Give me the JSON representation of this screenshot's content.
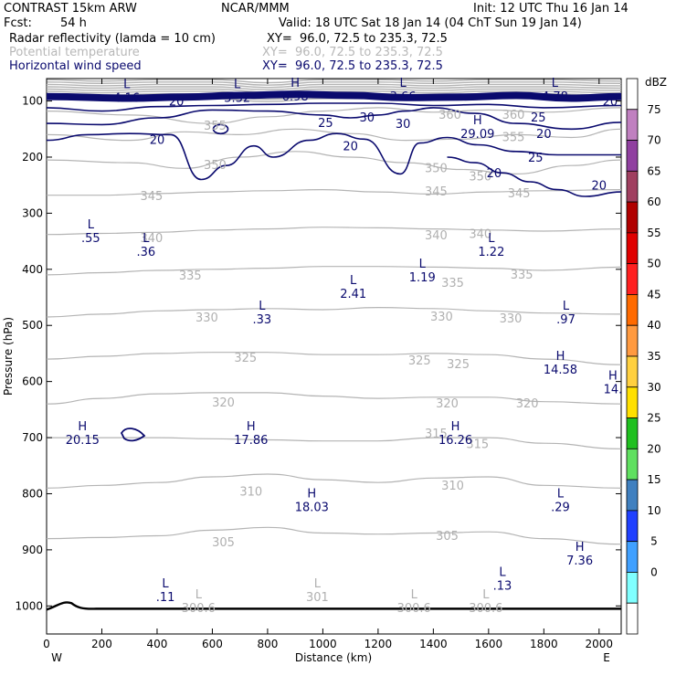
{
  "header": {
    "model": "CONTRAST 15km ARW",
    "org": "NCAR/MMM",
    "init": "Init: 12 UTC Thu 16 Jan 14",
    "fcst_label": "Fcst:",
    "fcst_value": "54 h",
    "valid": "Valid: 18 UTC Sat 18 Jan 14 (04 ChT Sun 19 Jan 14)",
    "fields": [
      {
        "name": "Radar reflectivity (lamda = 10 cm)",
        "xy": "XY=  96.0, 72.5 to 235.3, 72.5",
        "color": "#000000"
      },
      {
        "name": "Potential temperature",
        "xy": "XY=  96.0, 72.5 to 235.3, 72.5",
        "color": "#b8b8b8"
      },
      {
        "name": "Horizontal wind speed",
        "xy": "XY=  96.0, 72.5 to 235.3, 72.5",
        "color": "#0a0a6e"
      }
    ]
  },
  "chart_data": {
    "type": "contour",
    "xlabel": "Distance (km)",
    "ylabel": "Pressure (hPa)",
    "xlim": [
      0,
      2080
    ],
    "ylim": [
      1050,
      60
    ],
    "x_ticks": [
      0,
      200,
      400,
      600,
      800,
      1000,
      1200,
      1400,
      1600,
      1800,
      2000
    ],
    "y_ticks": [
      100,
      200,
      300,
      400,
      500,
      600,
      700,
      800,
      900,
      1000
    ],
    "x_end_labels": {
      "left": "W",
      "right": "E"
    },
    "colorbar": {
      "unit": "dBZ",
      "levels": [
        75,
        70,
        65,
        60,
        55,
        50,
        45,
        40,
        35,
        30,
        25,
        20,
        15,
        10,
        5,
        0
      ],
      "colors": [
        "#ffffff",
        "#c080c0",
        "#9040a0",
        "#a04060",
        "#b00000",
        "#e00000",
        "#ff2020",
        "#ff6a00",
        "#ff9a40",
        "#ffd040",
        "#ffe000",
        "#20c020",
        "#60e060",
        "#4080c0",
        "#2040ff",
        "#40a0ff",
        "#80ffff",
        "#ffffff"
      ]
    },
    "theta_contours": [
      {
        "label": "345",
        "p": [
          268,
          268,
          265,
          262,
          260,
          258,
          262,
          266,
          262,
          260,
          258
        ]
      },
      {
        "label": "340",
        "p": [
          338,
          336,
          334,
          330,
          328,
          325,
          326,
          328,
          330,
          332,
          328
        ]
      },
      {
        "label": "335",
        "p": [
          410,
          406,
          402,
          400,
          398,
          395,
          395,
          396,
          398,
          402,
          396
        ]
      },
      {
        "label": "330",
        "p": [
          485,
          480,
          474,
          472,
          470,
          472,
          468,
          470,
          474,
          478,
          480
        ]
      },
      {
        "label": "325",
        "p": [
          560,
          555,
          550,
          548,
          548,
          552,
          552,
          550,
          552,
          560,
          570
        ]
      },
      {
        "label": "320",
        "p": [
          640,
          630,
          622,
          620,
          620,
          626,
          630,
          628,
          628,
          636,
          640
        ]
      },
      {
        "label": "315",
        "p": [
          700,
          700,
          700,
          702,
          704,
          706,
          706,
          700,
          700,
          710,
          720
        ]
      },
      {
        "label": "310",
        "p": [
          790,
          785,
          780,
          770,
          765,
          775,
          780,
          772,
          770,
          785,
          790
        ]
      },
      {
        "label": "305",
        "p": [
          880,
          878,
          875,
          865,
          860,
          870,
          872,
          870,
          868,
          880,
          890
        ]
      }
    ],
    "theta_x": [
      0,
      200,
      400,
      600,
      800,
      1000,
      1200,
      1400,
      1600,
      1800,
      2080
    ],
    "theta_labels": [
      {
        "text": "360",
        "x": 1460,
        "p": 125
      },
      {
        "text": "360",
        "x": 1690,
        "p": 125
      },
      {
        "text": "355",
        "x": 610,
        "p": 145
      },
      {
        "text": "355",
        "x": 1690,
        "p": 165
      },
      {
        "text": "350",
        "x": 610,
        "p": 215
      },
      {
        "text": "350",
        "x": 1410,
        "p": 220
      },
      {
        "text": "350",
        "x": 1570,
        "p": 235
      },
      {
        "text": "345",
        "x": 380,
        "p": 270
      },
      {
        "text": "345",
        "x": 1410,
        "p": 262
      },
      {
        "text": "345",
        "x": 1710,
        "p": 265
      },
      {
        "text": "340",
        "x": 380,
        "p": 345
      },
      {
        "text": "340",
        "x": 1410,
        "p": 340
      },
      {
        "text": "340",
        "x": 1570,
        "p": 338
      },
      {
        "text": "335",
        "x": 520,
        "p": 412
      },
      {
        "text": "335",
        "x": 1470,
        "p": 425
      },
      {
        "text": "335",
        "x": 1720,
        "p": 410
      },
      {
        "text": "330",
        "x": 580,
        "p": 487
      },
      {
        "text": "330",
        "x": 1430,
        "p": 485
      },
      {
        "text": "330",
        "x": 1680,
        "p": 488
      },
      {
        "text": "325",
        "x": 720,
        "p": 558
      },
      {
        "text": "325",
        "x": 1350,
        "p": 563
      },
      {
        "text": "325",
        "x": 1490,
        "p": 570
      },
      {
        "text": "320",
        "x": 640,
        "p": 638
      },
      {
        "text": "320",
        "x": 1450,
        "p": 640
      },
      {
        "text": "320",
        "x": 1740,
        "p": 640
      },
      {
        "text": "315",
        "x": 1410,
        "p": 693
      },
      {
        "text": "315",
        "x": 1560,
        "p": 712
      },
      {
        "text": "310",
        "x": 740,
        "p": 797
      },
      {
        "text": "310",
        "x": 1470,
        "p": 786
      },
      {
        "text": "305",
        "x": 640,
        "p": 887
      },
      {
        "text": "305",
        "x": 1450,
        "p": 876
      }
    ],
    "wind_labels": [
      {
        "text": "20",
        "x": 470,
        "p": 100,
        "bold": false
      },
      {
        "text": "20",
        "x": 1800,
        "p": 158,
        "bold": false
      },
      {
        "text": "20",
        "x": 2040,
        "p": 100,
        "bold": false
      },
      {
        "text": "25",
        "x": 1010,
        "p": 138,
        "bold": false
      },
      {
        "text": "25",
        "x": 1780,
        "p": 128,
        "bold": false
      },
      {
        "text": "25",
        "x": 1770,
        "p": 200,
        "bold": false
      },
      {
        "text": "30",
        "x": 1160,
        "p": 128,
        "bold": false
      },
      {
        "text": "30",
        "x": 1290,
        "p": 140,
        "bold": false
      },
      {
        "text": "20",
        "x": 400,
        "p": 168,
        "bold": false
      },
      {
        "text": "20",
        "x": 1100,
        "p": 180,
        "bold": false
      },
      {
        "text": "20",
        "x": 1620,
        "p": 228,
        "bold": false
      },
      {
        "text": "20",
        "x": 2000,
        "p": 250,
        "bold": false
      }
    ],
    "extrema": [
      {
        "type": "L",
        "value": "4.16",
        "x": 290,
        "p": 80,
        "series": "wind"
      },
      {
        "type": "L",
        "value": "3.32",
        "x": 690,
        "p": 80,
        "series": "wind"
      },
      {
        "type": "H",
        "value": "6.98",
        "x": 900,
        "p": 78,
        "series": "wind"
      },
      {
        "type": "L",
        "value": "3.66",
        "x": 1290,
        "p": 78,
        "series": "wind"
      },
      {
        "type": "L",
        "value": "4.78",
        "x": 1840,
        "p": 78,
        "series": "wind"
      },
      {
        "type": "H",
        "value": "29.09",
        "x": 1560,
        "p": 145,
        "series": "wind"
      },
      {
        "type": "L",
        "value": ".55",
        "x": 160,
        "p": 330,
        "series": "wind"
      },
      {
        "type": "L",
        "value": ".36",
        "x": 360,
        "p": 355,
        "series": "wind"
      },
      {
        "type": "L",
        "value": "1.22",
        "x": 1610,
        "p": 355,
        "series": "wind"
      },
      {
        "type": "L",
        "value": "1.19",
        "x": 1360,
        "p": 400,
        "series": "wind"
      },
      {
        "type": "L",
        "value": "2.41",
        "x": 1110,
        "p": 430,
        "series": "wind"
      },
      {
        "type": "L",
        "value": ".33",
        "x": 780,
        "p": 475,
        "series": "wind"
      },
      {
        "type": "L",
        "value": ".97",
        "x": 1880,
        "p": 475,
        "series": "wind"
      },
      {
        "type": "H",
        "value": "14.58",
        "x": 1860,
        "p": 565,
        "series": "wind"
      },
      {
        "type": "H",
        "value": "14.",
        "x": 2050,
        "p": 600,
        "series": "wind"
      },
      {
        "type": "H",
        "value": "20.15",
        "x": 130,
        "p": 690,
        "series": "wind"
      },
      {
        "type": "H",
        "value": "17.86",
        "x": 740,
        "p": 690,
        "series": "wind"
      },
      {
        "type": "H",
        "value": "16.26",
        "x": 1480,
        "p": 690,
        "series": "wind"
      },
      {
        "type": "H",
        "value": "18.03",
        "x": 960,
        "p": 810,
        "series": "wind"
      },
      {
        "type": "L",
        "value": ".29",
        "x": 1860,
        "p": 810,
        "series": "wind"
      },
      {
        "type": "H",
        "value": "7.36",
        "x": 1930,
        "p": 905,
        "series": "wind"
      },
      {
        "type": "L",
        "value": ".13",
        "x": 1650,
        "p": 950,
        "series": "wind"
      },
      {
        "type": "L",
        "value": ".11",
        "x": 430,
        "p": 970,
        "series": "wind"
      },
      {
        "type": "L",
        "value": "300.6",
        "x": 550,
        "p": 990,
        "series": "theta"
      },
      {
        "type": "L",
        "value": "301",
        "x": 980,
        "p": 970,
        "series": "theta"
      },
      {
        "type": "L",
        "value": "300.6",
        "x": 1330,
        "p": 990,
        "series": "theta"
      },
      {
        "type": "L",
        "value": "300.6",
        "x": 1590,
        "p": 990,
        "series": "theta"
      }
    ]
  }
}
